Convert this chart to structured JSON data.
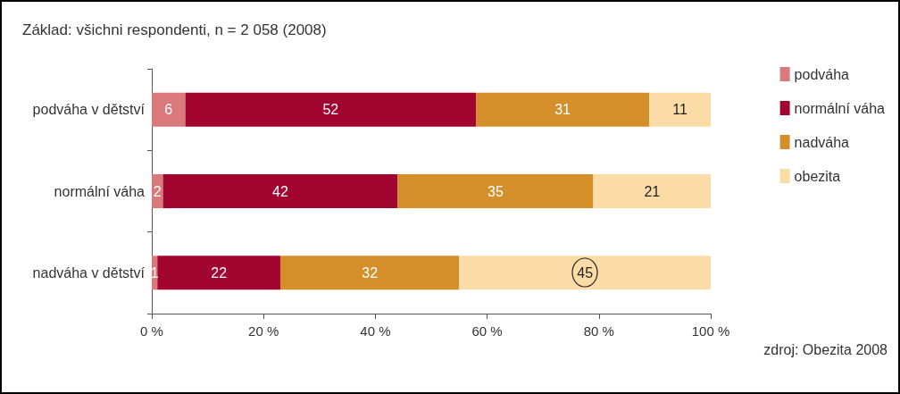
{
  "chart_data": {
    "type": "bar",
    "orientation": "horizontal",
    "stacked": true,
    "title": "Základ: všichni respondenti, n = 2 058 (2008)",
    "categories": [
      "podváha v dětství",
      "normální váha",
      "nadváha v dětství"
    ],
    "series": [
      {
        "name": "podváha",
        "color": "#d9797b",
        "values": [
          6,
          2,
          1
        ]
      },
      {
        "name": "normální váha",
        "color": "#a10530",
        "values": [
          52,
          42,
          22
        ]
      },
      {
        "name": "nadváha",
        "color": "#d48f2b",
        "values": [
          31,
          35,
          32
        ]
      },
      {
        "name": "obezita",
        "color": "#fcdca6",
        "values": [
          11,
          21,
          45
        ]
      }
    ],
    "xlim": [
      0,
      100
    ],
    "xticks": [
      {
        "value": 0,
        "label": "0 %"
      },
      {
        "value": 20,
        "label": "20 %"
      },
      {
        "value": 40,
        "label": "40 %"
      },
      {
        "value": 60,
        "label": "60 %"
      },
      {
        "value": 80,
        "label": "80 %"
      },
      {
        "value": 100,
        "label": "100 %"
      }
    ],
    "data_labels": true,
    "grid": false,
    "legend": "right",
    "annotations": [
      "zdroj: Obezita 2008"
    ]
  }
}
